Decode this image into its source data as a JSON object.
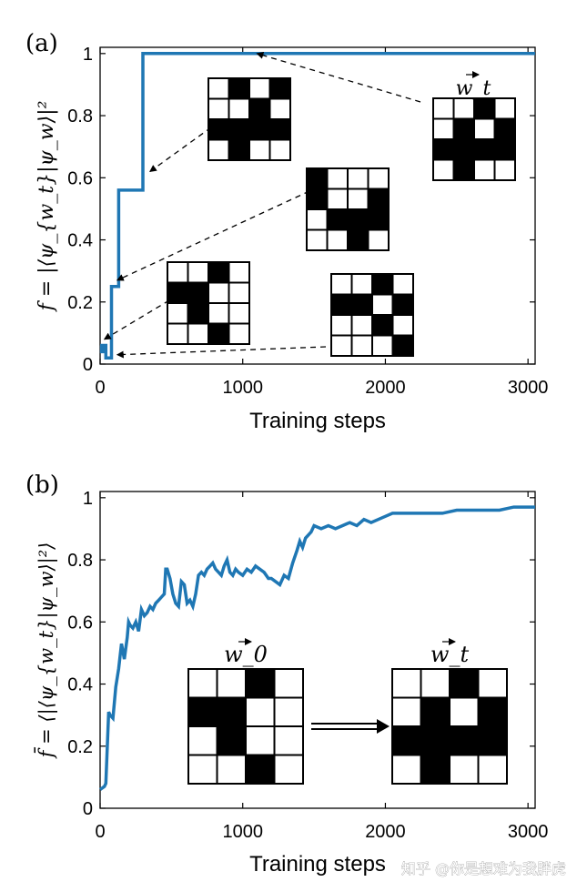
{
  "chart_data": [
    {
      "panel": "(a)",
      "type": "line",
      "xlabel": "Training steps",
      "ylabel": "f = |⟨ψ_{w_t}|ψ_w⟩|²",
      "xlim": [
        0,
        3050
      ],
      "ylim": [
        0,
        1.02
      ],
      "xticks": [
        0,
        1000,
        2000,
        3000
      ],
      "yticks": [
        0,
        0.2,
        0.4,
        0.6,
        0.8,
        1
      ],
      "ytick_labels": [
        "0",
        "0.2",
        "0.4",
        "0.6",
        "0.8",
        "1"
      ],
      "series_color": "#1f77b4",
      "series": [
        {
          "name": "fidelity",
          "x": [
            0,
            10,
            10,
            20,
            20,
            40,
            40,
            60,
            60,
            80,
            80,
            130,
            130,
            300,
            300,
            3050
          ],
          "y": [
            0.06,
            0.06,
            0.04,
            0.04,
            0.06,
            0.06,
            0.02,
            0.02,
            0.02,
            0.02,
            0.25,
            0.25,
            0.56,
            0.56,
            1.0,
            1.0
          ]
        }
      ],
      "insets": [
        {
          "name": "target",
          "label": "w_t",
          "grid": [
            [
              0,
              0,
              1,
              0
            ],
            [
              0,
              1,
              0,
              1
            ],
            [
              1,
              1,
              1,
              1
            ],
            [
              0,
              1,
              0,
              0
            ]
          ],
          "arrow_to": [
            1100,
            1.0
          ]
        },
        {
          "name": "state-056",
          "grid": [
            [
              0,
              1,
              0,
              1
            ],
            [
              0,
              0,
              1,
              0
            ],
            [
              1,
              1,
              1,
              1
            ],
            [
              0,
              1,
              0,
              0
            ]
          ],
          "arrow_to": [
            350,
            0.62
          ]
        },
        {
          "name": "state-025",
          "grid": [
            [
              1,
              0,
              0,
              0
            ],
            [
              1,
              0,
              0,
              1
            ],
            [
              0,
              1,
              1,
              1
            ],
            [
              0,
              0,
              1,
              0
            ]
          ],
          "arrow_to": [
            120,
            0.27
          ]
        },
        {
          "name": "state-006",
          "grid": [
            [
              0,
              0,
              1,
              0
            ],
            [
              1,
              1,
              0,
              0
            ],
            [
              0,
              1,
              0,
              0
            ],
            [
              0,
              0,
              1,
              0
            ]
          ],
          "arrow_to": [
            30,
            0.08
          ]
        },
        {
          "name": "state-002",
          "grid": [
            [
              0,
              0,
              1,
              0
            ],
            [
              1,
              1,
              0,
              1
            ],
            [
              0,
              0,
              1,
              0
            ],
            [
              0,
              0,
              0,
              1
            ]
          ],
          "arrow_to": [
            120,
            0.03
          ]
        }
      ]
    },
    {
      "panel": "(b)",
      "type": "line",
      "xlabel": "Training steps",
      "ylabel": "f̄ = ⟨|⟨ψ_{w_t}|ψ_w⟩|²⟩",
      "xlim": [
        0,
        3050
      ],
      "ylim": [
        0,
        1.02
      ],
      "xticks": [
        0,
        1000,
        2000,
        3000
      ],
      "yticks": [
        0,
        0.2,
        0.4,
        0.6,
        0.8,
        1
      ],
      "ytick_labels": [
        "0",
        "0.2",
        "0.4",
        "0.6",
        "0.8",
        "1"
      ],
      "series_color": "#1f77b4",
      "series": [
        {
          "name": "average fidelity",
          "x": [
            0,
            30,
            40,
            60,
            70,
            90,
            110,
            130,
            150,
            170,
            190,
            200,
            210,
            230,
            250,
            270,
            290,
            310,
            330,
            350,
            370,
            390,
            410,
            430,
            450,
            460,
            470,
            490,
            510,
            530,
            550,
            570,
            590,
            610,
            630,
            650,
            670,
            690,
            710,
            730,
            750,
            770,
            790,
            810,
            830,
            850,
            870,
            890,
            910,
            930,
            950,
            970,
            1000,
            1030,
            1060,
            1090,
            1120,
            1150,
            1180,
            1200,
            1230,
            1260,
            1290,
            1320,
            1350,
            1380,
            1400,
            1420,
            1440,
            1460,
            1480,
            1500,
            1550,
            1600,
            1650,
            1700,
            1750,
            1800,
            1850,
            1900,
            1950,
            2000,
            2050,
            2100,
            2200,
            2300,
            2400,
            2500,
            2600,
            2700,
            2800,
            2900,
            3000,
            3050
          ],
          "y": [
            0.06,
            0.07,
            0.08,
            0.31,
            0.3,
            0.29,
            0.39,
            0.45,
            0.53,
            0.48,
            0.55,
            0.6,
            0.59,
            0.58,
            0.6,
            0.57,
            0.64,
            0.62,
            0.63,
            0.65,
            0.64,
            0.66,
            0.67,
            0.68,
            0.69,
            0.77,
            0.77,
            0.74,
            0.69,
            0.66,
            0.65,
            0.73,
            0.72,
            0.66,
            0.67,
            0.65,
            0.69,
            0.75,
            0.76,
            0.75,
            0.77,
            0.78,
            0.79,
            0.77,
            0.76,
            0.75,
            0.78,
            0.8,
            0.76,
            0.75,
            0.77,
            0.76,
            0.75,
            0.77,
            0.76,
            0.78,
            0.77,
            0.76,
            0.74,
            0.74,
            0.73,
            0.72,
            0.75,
            0.74,
            0.79,
            0.83,
            0.86,
            0.84,
            0.87,
            0.88,
            0.89,
            0.91,
            0.9,
            0.91,
            0.9,
            0.91,
            0.92,
            0.91,
            0.93,
            0.92,
            0.93,
            0.94,
            0.95,
            0.95,
            0.95,
            0.95,
            0.95,
            0.96,
            0.96,
            0.96,
            0.96,
            0.97,
            0.97,
            0.97
          ]
        }
      ],
      "insets": [
        {
          "name": "w0",
          "label": "w_0",
          "grid": [
            [
              0,
              0,
              1,
              0
            ],
            [
              1,
              1,
              0,
              0
            ],
            [
              0,
              1,
              0,
              0
            ],
            [
              0,
              0,
              1,
              0
            ]
          ]
        },
        {
          "name": "wt",
          "label": "w_t",
          "grid": [
            [
              0,
              0,
              1,
              0
            ],
            [
              0,
              1,
              0,
              1
            ],
            [
              1,
              1,
              1,
              1
            ],
            [
              0,
              1,
              0,
              0
            ]
          ]
        }
      ]
    }
  ],
  "watermark": "知乎 @你是想难为我胖虎"
}
